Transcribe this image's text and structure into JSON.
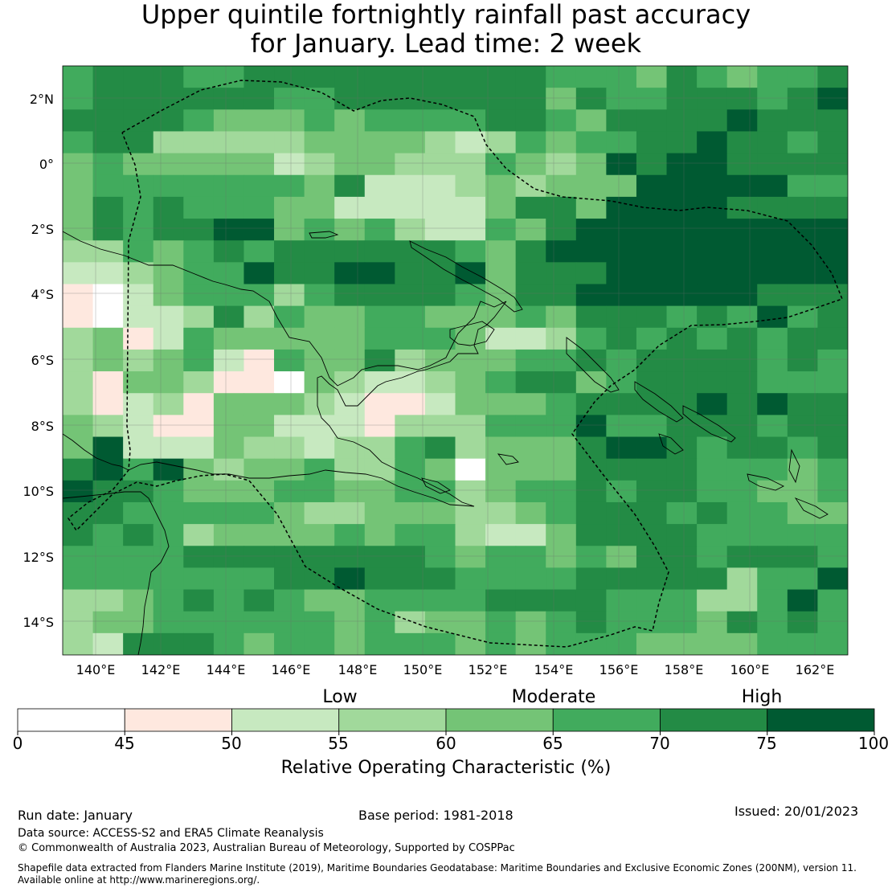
{
  "title_line1": "Upper quintile fortnightly rainfall past accuracy",
  "title_line2": "for January. Lead time: 2 week",
  "lat_labels": [
    "2°N",
    "0°",
    "2°S",
    "4°S",
    "6°S",
    "8°S",
    "10°S",
    "12°S",
    "14°S"
  ],
  "lon_labels": [
    "140°E",
    "142°E",
    "144°E",
    "146°E",
    "148°E",
    "150°E",
    "152°E",
    "154°E",
    "156°E",
    "158°E",
    "160°E",
    "162°E"
  ],
  "colorbar": {
    "categories": [
      "Low",
      "Moderate",
      "High"
    ],
    "ticks": [
      "0",
      "45",
      "50",
      "55",
      "60",
      "65",
      "70",
      "75",
      "100"
    ],
    "colors": [
      "#ffffff",
      "#fee8df",
      "#c7e9c0",
      "#a1d99b",
      "#74c476",
      "#41ab5d",
      "#238b45",
      "#005a32"
    ],
    "label": "Relative Operating Characteristic (%)"
  },
  "footer": {
    "run_date": "Run date: January",
    "base_period": "Base period: 1981-2018",
    "issued": "Issued: 20/01/2023",
    "data_source": "Data source: ACCESS-S2 and ERA5 Climate Reanalysis",
    "copyright": "© Commonwealth of Australia 2023, Australian Bureau of Meteorology, Supported by COSPPac",
    "shapefile_line1": "Shapefile data extracted from Flanders Marine Institute (2019), Maritime Boundaries Geodatabase: Maritime Boundaries and Exclusive Economic Zones (200NM), version 11.",
    "shapefile_line2": "Available online at http://www.marineregions.org/."
  },
  "map": {
    "grid_rows": [
      "67776677777777776665765667",
      "67777776677777775766777678",
      "77776555656666776577778777",
      "67744444555543465667787767",
      "56555553455444654587887777",
      "56666666573334545558888866",
      "57676665533333577588887777",
      "57677885656433657888888888",
      "44656767777776578888888888",
      "33456687788778577788888888",
      "21356664677776577888888777",
      "21334746556655565777676867",
      "45236555556665334676767677",
      "45456326557455566767777676",
      "42554221543345677567777666",
      "42342555432235556777787877",
      "54322553332444666866777677",
      "58333544344674555788767767",
      "78685455644651555777766656",
      "87765556655664566767766556",
      "77666665445554456777676655",
      "76764555565664335777766666",
      "66667777777765665657767776",
      "66666667787776666777774668",
      "44567676556666777766644686",
      "45566666656455656766657676",
      "43777656656665656665555666"
    ]
  }
}
